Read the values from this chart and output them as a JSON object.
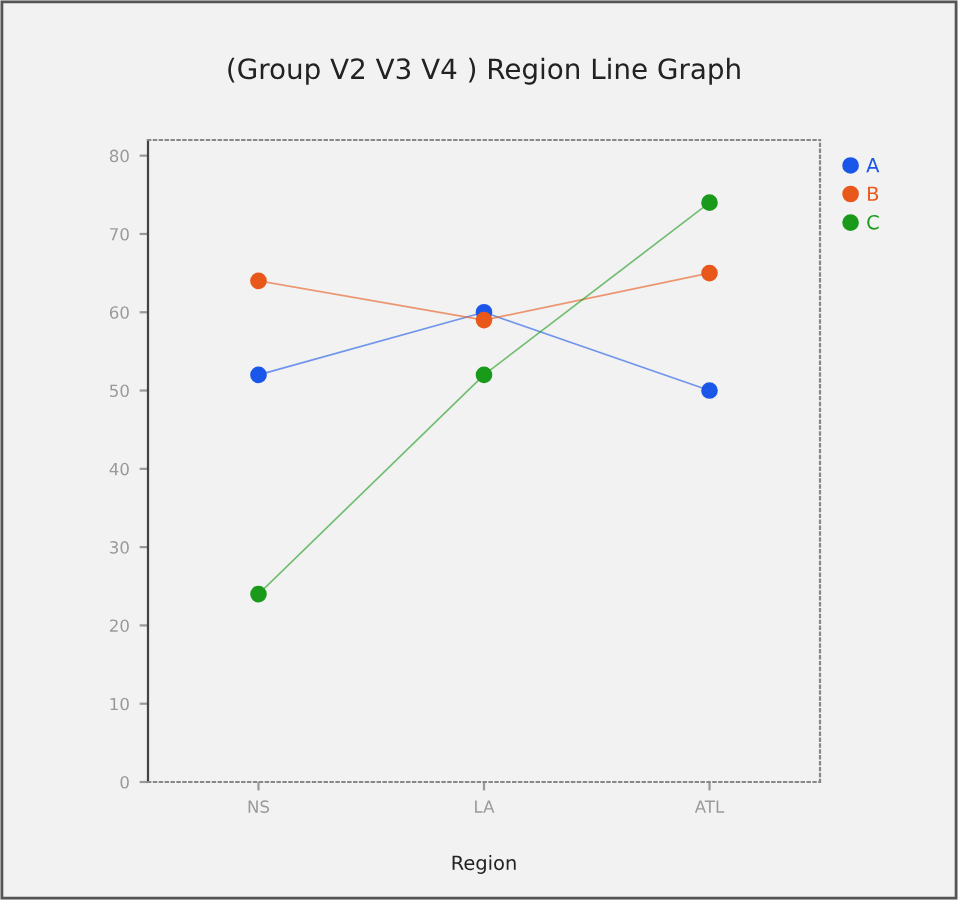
{
  "chart_data": {
    "type": "line",
    "title": "(Group V2 V3 V4 ) Region Line Graph",
    "xlabel": "Region",
    "categories": [
      "NS",
      "LA",
      "ATL"
    ],
    "series": [
      {
        "name": "A",
        "color": "#1a56e8",
        "values": [
          52,
          60,
          50
        ]
      },
      {
        "name": "B",
        "color": "#e8581a",
        "values": [
          64,
          59,
          65
        ]
      },
      {
        "name": "C",
        "color": "#1a9a1a",
        "values": [
          24,
          52,
          74
        ]
      }
    ],
    "ylim": [
      0,
      82
    ],
    "yticks": [
      0,
      10,
      20,
      30,
      40,
      50,
      60,
      70,
      80
    ],
    "grid": false,
    "legend": "top right",
    "marker": "circle",
    "line_style": "solid"
  }
}
